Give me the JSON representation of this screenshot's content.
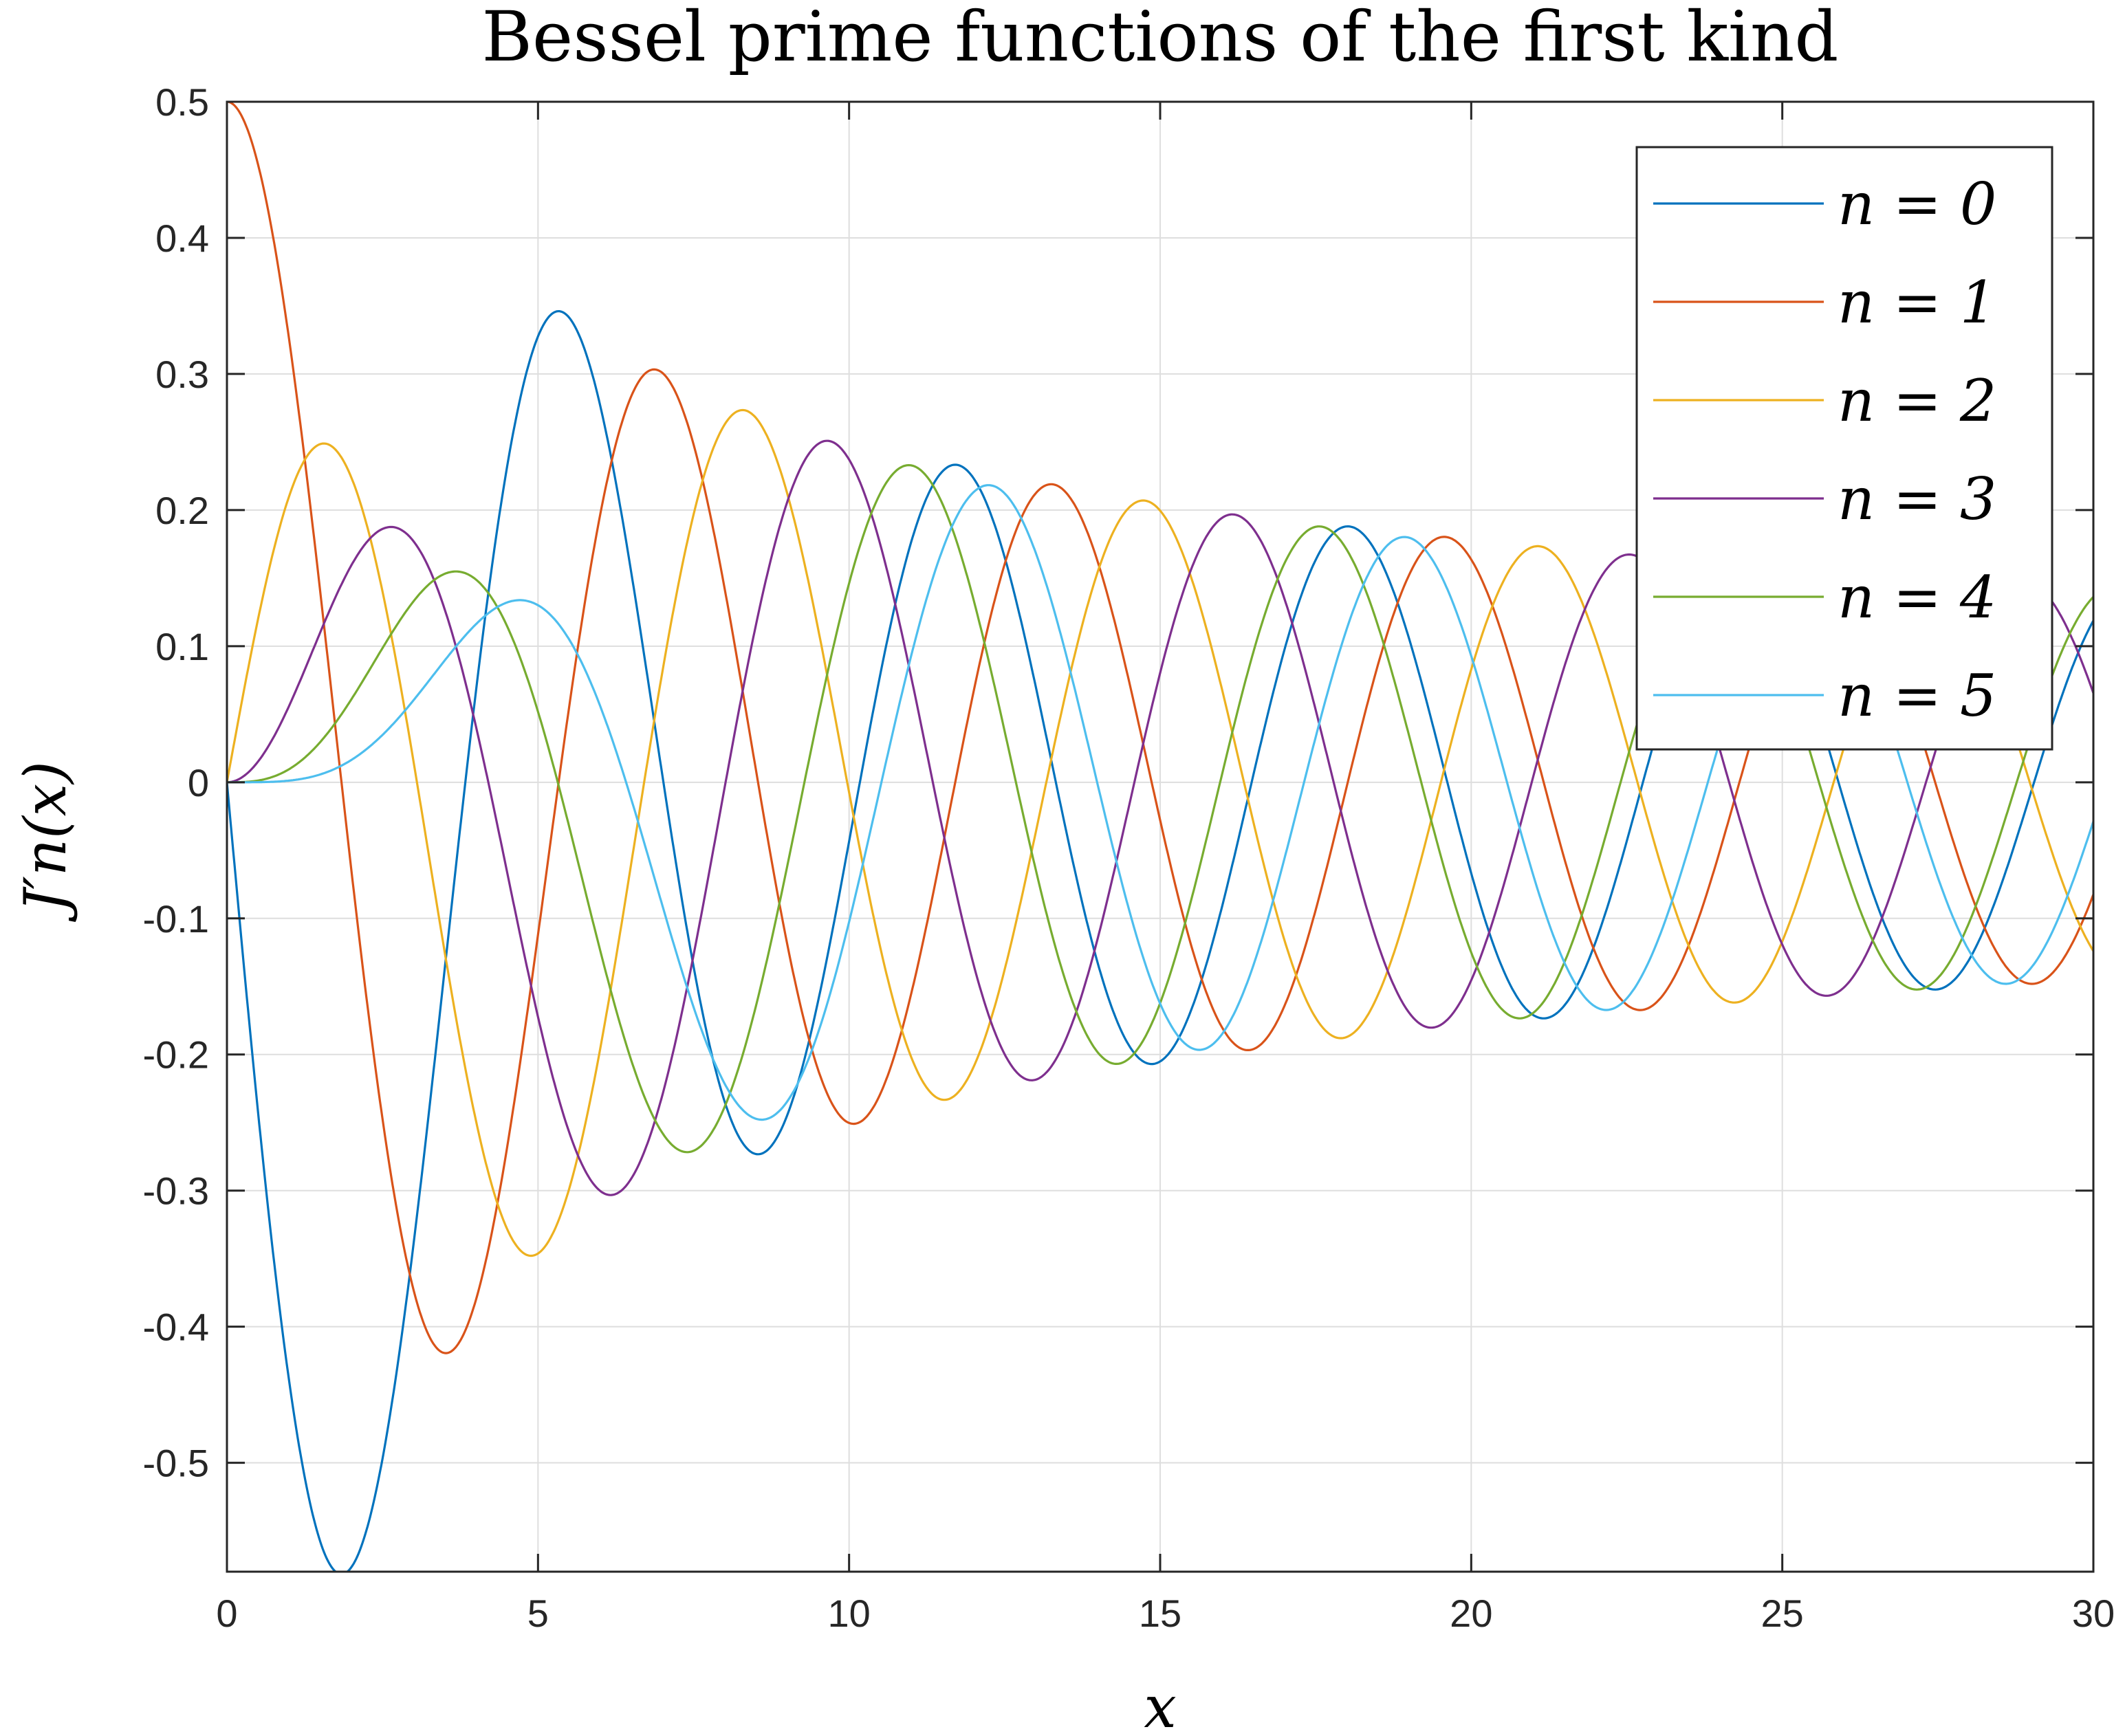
{
  "chart_data": {
    "type": "line",
    "title": "Bessel prime functions of the first kind",
    "xlabel": "x",
    "ylabel": "J′n(x)",
    "xlim": [
      0,
      30
    ],
    "ylim": [
      -0.58,
      0.5
    ],
    "xticks": [
      0,
      5,
      10,
      15,
      20,
      25,
      30
    ],
    "yticks": [
      0.5,
      0.4,
      0.3,
      0.2,
      0.1,
      0,
      -0.1,
      -0.2,
      -0.3,
      -0.4,
      -0.5
    ],
    "xtick_labels": [
      "0",
      "5",
      "10",
      "15",
      "20",
      "25",
      "30"
    ],
    "ytick_labels": [
      "0.5",
      "0.4",
      "0.3",
      "0.2",
      "0.1",
      "0",
      "-0.1",
      "-0.2",
      "-0.3",
      "-0.4",
      "-0.5"
    ],
    "grid": true,
    "legend_position": "top-right",
    "x_range": [
      0,
      30
    ],
    "sample_step": 0.02,
    "series": [
      {
        "name": "n = 0",
        "order": 0,
        "color": "#0072BD"
      },
      {
        "name": "n = 1",
        "order": 1,
        "color": "#D95319"
      },
      {
        "name": "n = 2",
        "order": 2,
        "color": "#EDB120"
      },
      {
        "name": "n = 3",
        "order": 3,
        "color": "#7E2F8E"
      },
      {
        "name": "n = 4",
        "order": 4,
        "color": "#77AC30"
      },
      {
        "name": "n = 5",
        "order": 5,
        "color": "#4DBEEE"
      }
    ]
  }
}
